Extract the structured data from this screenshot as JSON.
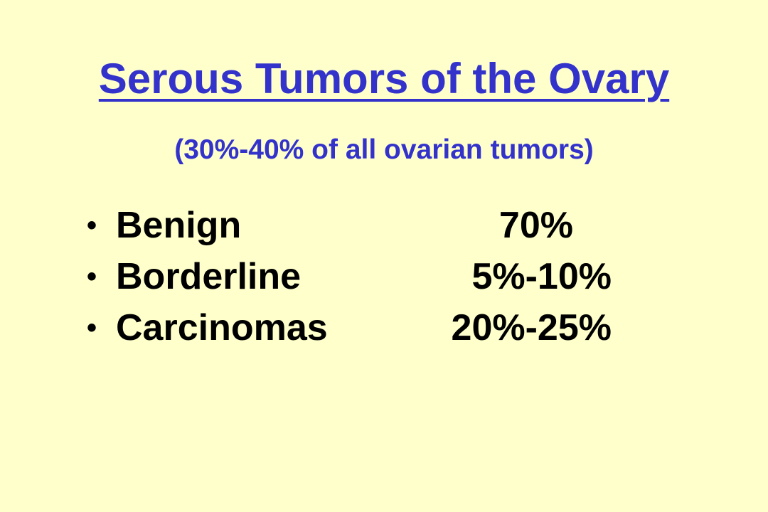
{
  "slide": {
    "title": "Serous Tumors of the Ovary",
    "subtitle": "(30%-40% of all ovarian tumors)",
    "bullet_glyph": "•",
    "items": [
      {
        "label": "Benign",
        "value": "70%"
      },
      {
        "label": "Borderline",
        "value": "5%-10%"
      },
      {
        "label": "Carcinomas",
        "value": "20%-25%"
      }
    ]
  },
  "colors": {
    "background": "#FFFFCC",
    "title": "#3333CC",
    "body_text": "#000000"
  }
}
